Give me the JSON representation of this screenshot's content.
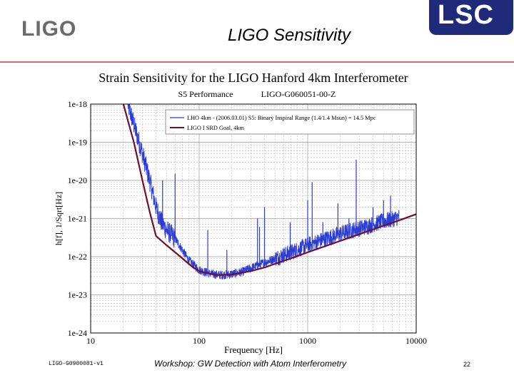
{
  "header": {
    "logo_text": "LIGO",
    "slide_title": "LIGO Sensitivity",
    "lsc_logo_text": "LSC"
  },
  "footer": {
    "doc_id": "LIGO-G0900081-v1",
    "event": "Workshop: GW Detection with Atom Interferometry",
    "page_number": "22"
  },
  "colors": {
    "rule": "#e06470",
    "measured": "#2b3bd6",
    "goal": "#6b1030",
    "lsc": "#1f2b7a"
  },
  "chart_data": {
    "type": "line",
    "title": "Strain Sensitivity for the LIGO Hanford 4km Interferometer",
    "subtitle_left": "S5 Performance",
    "subtitle_right": "LIGO-G060051-00-Z",
    "xlabel": "Frequency [Hz]",
    "ylabel": "h[f], 1/Sqrt[Hz]",
    "x_scale": "log",
    "y_scale": "log",
    "xlim": [
      10,
      10000
    ],
    "ylim": [
      1e-24,
      1e-18
    ],
    "x_ticks": [
      10,
      100,
      1000,
      10000
    ],
    "x_tick_labels": [
      "10",
      "100",
      "1000",
      "10000"
    ],
    "y_ticks": [
      1e-18,
      1e-19,
      1e-20,
      1e-21,
      1e-22,
      1e-23,
      1e-24
    ],
    "y_tick_labels": [
      "1e-18",
      "1e-19",
      "1e-20",
      "1e-21",
      "1e-22",
      "1e-23",
      "1e-24"
    ],
    "grid": true,
    "legend_position": "top-right",
    "series": [
      {
        "name": "LHO 4km - (2006.03.01) S5: Binary Inspiral Range (1.4/1.4 Msun) = 14.5 Mpc",
        "style": "noisy",
        "x": [
          22,
          26,
          30,
          35,
          40,
          45,
          50,
          60,
          70,
          80,
          100,
          130,
          160,
          200,
          250,
          300,
          400,
          500,
          700,
          1000,
          1500,
          2000,
          3000,
          4000,
          5000,
          6000,
          7000
        ],
        "y": [
          1e-18,
          2e-19,
          5e-20,
          1e-20,
          2e-21,
          8e-22,
          5e-22,
          3e-22,
          1.5e-22,
          8e-23,
          4.5e-23,
          3.5e-23,
          3.3e-23,
          3.5e-23,
          4e-23,
          5e-23,
          7e-23,
          9e-23,
          1.3e-22,
          2e-22,
          3e-22,
          4e-22,
          5.5e-22,
          7e-22,
          8.5e-22,
          9.5e-22,
          1.1e-21
        ],
        "lines": [
          {
            "x": 46,
            "y": 1e-20
          },
          {
            "x": 60,
            "y": 1.5e-20
          },
          {
            "x": 120,
            "y": 5e-22
          },
          {
            "x": 180,
            "y": 1.5e-22
          },
          {
            "x": 345,
            "y": 1e-21
          },
          {
            "x": 360,
            "y": 6e-22
          },
          {
            "x": 400,
            "y": 2e-21
          },
          {
            "x": 690,
            "y": 8e-22
          },
          {
            "x": 1000,
            "y": 3e-21
          },
          {
            "x": 1100,
            "y": 9e-21
          },
          {
            "x": 1380,
            "y": 8e-22
          },
          {
            "x": 1900,
            "y": 2.5e-21
          },
          {
            "x": 2400,
            "y": 1e-21
          },
          {
            "x": 2800,
            "y": 3.5e-20
          },
          {
            "x": 4000,
            "y": 2e-21
          },
          {
            "x": 5000,
            "y": 3e-21
          },
          {
            "x": 5800,
            "y": 4e-21
          }
        ]
      },
      {
        "name": "LIGO I SRD Goal, 4km",
        "style": "smooth",
        "x": [
          20,
          25,
          30,
          35,
          40,
          50,
          60,
          70,
          80,
          90,
          100,
          130,
          150,
          200,
          300,
          400,
          500,
          700,
          1000,
          2000,
          3000,
          5000,
          7000,
          10000
        ],
        "y": [
          1e-18,
          1e-19,
          1e-20,
          1.5e-21,
          3.5e-22,
          2e-22,
          1.3e-22,
          9e-23,
          6.5e-23,
          5e-23,
          4.2e-23,
          3.5e-23,
          3.3e-23,
          3.4e-23,
          4.2e-23,
          5.2e-23,
          6.5e-23,
          9e-23,
          1.3e-22,
          2.6e-22,
          3.9e-22,
          6.5e-22,
          9e-22,
          1.3e-21
        ]
      }
    ]
  }
}
